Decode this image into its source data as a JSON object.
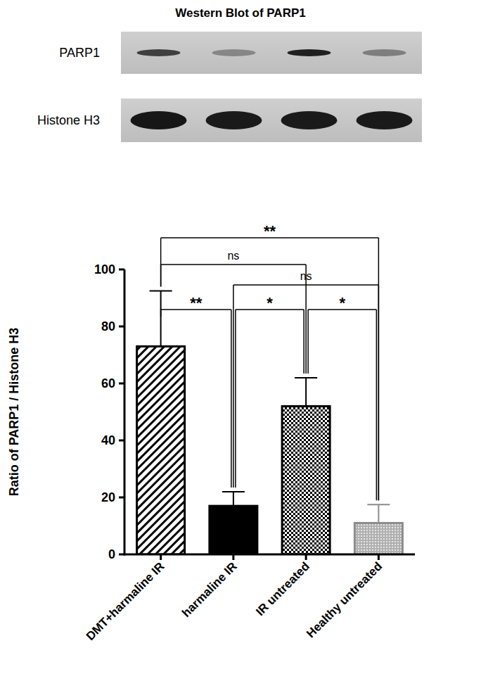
{
  "blot": {
    "title": "Western Blot of PARP1",
    "rows": [
      "PARP1",
      "Histone H3"
    ]
  },
  "chart_data": {
    "type": "bar",
    "y_label": "Ratio of PARP1 / Histone H3",
    "categories": [
      "DMT+harmaline IR",
      "harmaline IR",
      "IR untreated",
      "Healthy untreated"
    ],
    "values": [
      73,
      17,
      52,
      11
    ],
    "errors": [
      19.5,
      5,
      10,
      6.5
    ],
    "colors": [
      "#000000",
      "#000000",
      "#000000",
      "#8c8c8c"
    ],
    "ylim": [
      0,
      100
    ],
    "yticks": [
      0,
      20,
      40,
      60,
      80,
      100
    ],
    "grid": false,
    "annotations": [
      {
        "between": [
          "DMT+harmaline IR",
          "Healthy untreated"
        ],
        "label": "**"
      },
      {
        "between": [
          "DMT+harmaline IR",
          "IR untreated"
        ],
        "label": "ns"
      },
      {
        "between": [
          "harmaline IR",
          "Healthy untreated"
        ],
        "label": "ns"
      },
      {
        "between": [
          "DMT+harmaline IR",
          "harmaline IR"
        ],
        "label": "**"
      },
      {
        "between": [
          "harmaline IR",
          "IR untreated"
        ],
        "label": "*"
      },
      {
        "between": [
          "IR untreated",
          "Healthy untreated"
        ],
        "label": "*"
      }
    ]
  }
}
